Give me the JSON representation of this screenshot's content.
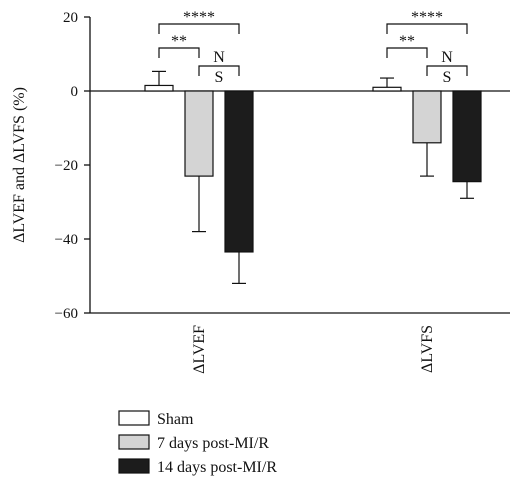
{
  "chart_data": {
    "type": "bar",
    "ylabel": "ΔLVEF and ΔLVFS (%)",
    "xlabel": "",
    "ylim": [
      -60,
      20
    ],
    "yticks": [
      20,
      0,
      -20,
      -40,
      -60
    ],
    "ytick_labels": [
      "20",
      "0",
      "−20",
      "−40",
      "−60"
    ],
    "categories": [
      "ΔLVEF",
      "ΔLVFS"
    ],
    "series": [
      {
        "name": "Sham",
        "color": "#ffffff",
        "values": [
          1.5,
          1.0
        ],
        "error": [
          3.8,
          2.5
        ]
      },
      {
        "name": "7 days post-MI/R",
        "color": "#d4d4d4",
        "values": [
          -23,
          -14
        ],
        "error": [
          15,
          9
        ]
      },
      {
        "name": "14 days post-MI/R",
        "color": "#1c1c1c",
        "values": [
          -43.5,
          -24.5
        ],
        "error": [
          8.5,
          4.5
        ]
      }
    ],
    "significance": [
      {
        "comparison": "Sham vs 14 days post-MI/R",
        "label": "****"
      },
      {
        "comparison": "Sham vs 7 days post-MI/R",
        "label": "**"
      },
      {
        "comparison": "7 days vs 14 days post-MI/R",
        "label_top": "N",
        "label_bottom": "S"
      }
    ],
    "legend_position": "bottom-left",
    "grid": false
  }
}
